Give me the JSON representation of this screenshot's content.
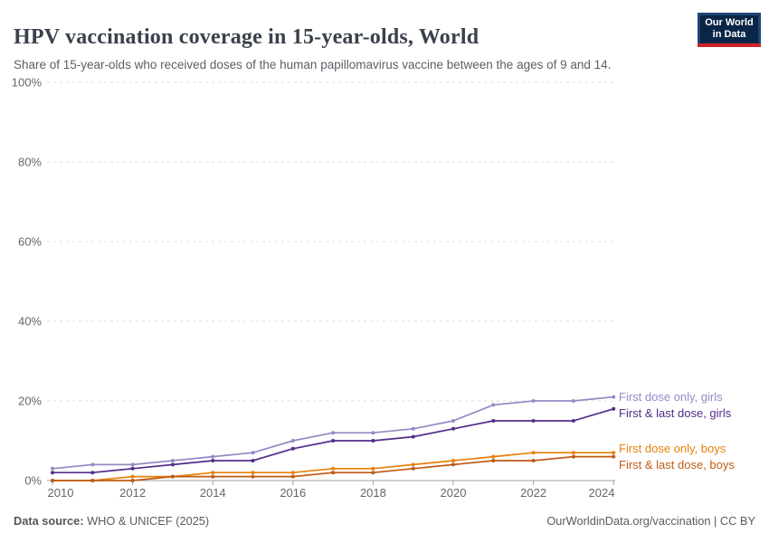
{
  "chart_data": {
    "type": "line",
    "title": "HPV vaccination coverage in 15-year-olds, World",
    "subtitle": "Share of 15-year-olds who received doses of the human papillomavirus vaccine between the ages of 9 and 14.",
    "x": [
      2010,
      2011,
      2012,
      2013,
      2014,
      2015,
      2016,
      2017,
      2018,
      2019,
      2020,
      2021,
      2022,
      2023,
      2024
    ],
    "x_ticks": [
      2010,
      2012,
      2014,
      2016,
      2018,
      2020,
      2022,
      2024
    ],
    "y_ticks": [
      0,
      20,
      40,
      60,
      80,
      100
    ],
    "y_tick_suffix": "%",
    "ylim": [
      0,
      100
    ],
    "xlabel": "",
    "ylabel": "",
    "grid": "horizontal-dashed",
    "legend_position": "right-of-line-ends",
    "series": [
      {
        "name": "First dose only, girls",
        "color": "#9689C5",
        "values": [
          3,
          4,
          4,
          5,
          6,
          7,
          10,
          12,
          12,
          13,
          15,
          19,
          20,
          20,
          21
        ]
      },
      {
        "name": "First & last dose, girls",
        "color": "#532C8B",
        "values": [
          2,
          2,
          3,
          4,
          5,
          5,
          8,
          10,
          10,
          11,
          13,
          15,
          15,
          15,
          18
        ]
      },
      {
        "name": "First dose only, boys",
        "color": "#E6810D",
        "values": [
          0,
          0,
          1,
          1,
          2,
          2,
          2,
          3,
          3,
          4,
          5,
          6,
          7,
          7,
          7
        ]
      },
      {
        "name": "First & last dose, boys",
        "color": "#BE5B15",
        "values": [
          0,
          0,
          0,
          1,
          1,
          1,
          1,
          2,
          2,
          3,
          4,
          5,
          5,
          6,
          6
        ]
      }
    ]
  },
  "logo": {
    "line1": "Our World",
    "line2": "in Data",
    "bg_color": "#0A2647",
    "frame_color": "#1D4577",
    "accent_color": "#CF2428"
  },
  "footer": {
    "datasource_label": "Data source:",
    "datasource_value": " WHO & UNICEF (2025)",
    "link": "OurWorldinData.org/vaccination | CC BY"
  },
  "style_colors": {
    "title_text": "#3A404D",
    "subtitle_text": "#5A5F66",
    "axis_text": "#666666",
    "gridline": "#DCDCDC",
    "axis_line": "#A0A0A0"
  }
}
